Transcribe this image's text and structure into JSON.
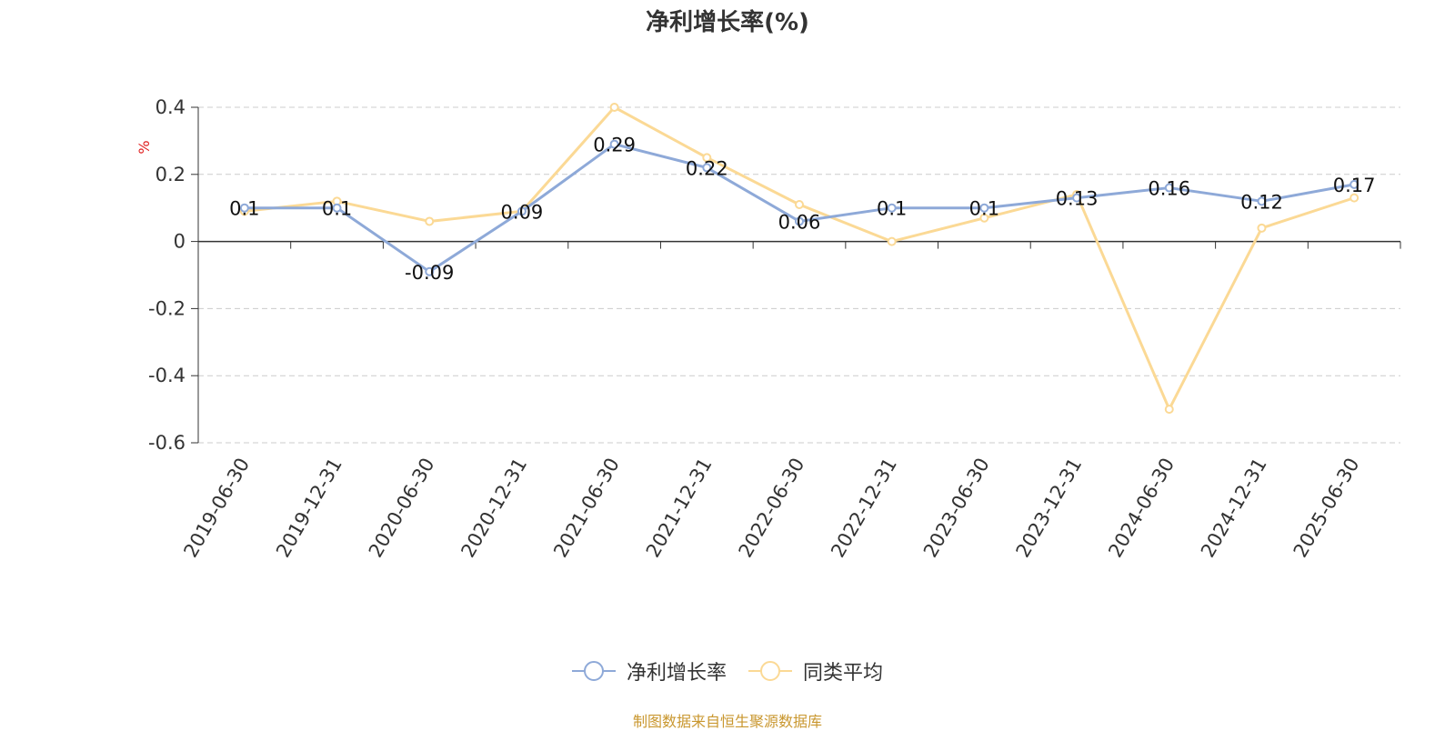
{
  "chart_data": {
    "type": "line",
    "title": "净利增长率(%)",
    "ylabel": "%",
    "ylim": [
      -0.6,
      0.4
    ],
    "yticks": [
      0.4,
      0.2,
      0,
      -0.2,
      -0.4,
      -0.6
    ],
    "grid": true,
    "legend_position": "bottom-center",
    "categories": [
      "2019-06-30",
      "2019-12-31",
      "2020-06-30",
      "2020-12-31",
      "2021-06-30",
      "2021-12-31",
      "2022-06-30",
      "2022-12-31",
      "2023-06-30",
      "2023-12-31",
      "2024-06-30",
      "2024-12-31",
      "2025-06-30"
    ],
    "series": [
      {
        "name": "净利增长率",
        "color": "#8ea9d8",
        "values": [
          0.1,
          0.1,
          -0.09,
          0.09,
          0.29,
          0.22,
          0.06,
          0.1,
          0.1,
          0.13,
          0.16,
          0.12,
          0.17
        ],
        "data_labels": [
          "0.1",
          "0.1",
          "-0.09",
          "0.09",
          "0.29",
          "0.22",
          "0.06",
          "0.1",
          "0.1",
          "0.13",
          "0.16",
          "0.12",
          "0.17"
        ]
      },
      {
        "name": "同类平均",
        "color": "#fbd995",
        "values": [
          0.09,
          0.12,
          0.06,
          0.09,
          0.4,
          0.25,
          0.11,
          0.0,
          0.07,
          0.14,
          -0.5,
          0.04,
          0.13
        ]
      }
    ]
  },
  "footer": {
    "source": "制图数据来自恒生聚源数据库"
  },
  "colors": {
    "label_red": "#e02020",
    "axis": "#333333",
    "grid": "#cccccc",
    "source_text": "#c9972f"
  }
}
